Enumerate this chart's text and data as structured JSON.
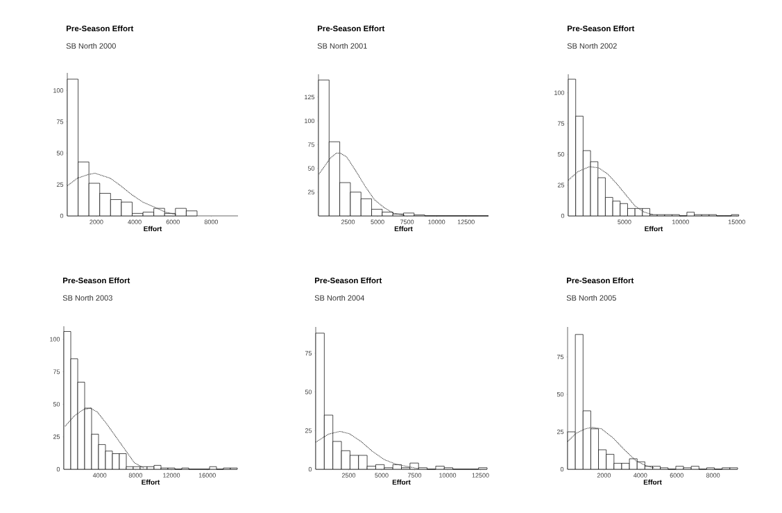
{
  "chart_data": [
    {
      "type": "histogram",
      "title": "Pre-Season Effort",
      "subtitle": "SB North 2000",
      "xlabel": "Effort",
      "xlim": [
        480,
        9400
      ],
      "ylim": [
        0,
        114
      ],
      "xticks": [
        2000,
        4000,
        6000,
        8000
      ],
      "yticks": [
        0,
        25,
        50,
        75,
        100
      ],
      "series": [
        {
          "type": "histogram",
          "color": "#ffffff",
          "bins": [
            480,
            1045,
            1610,
            2175,
            2740,
            3305,
            3870,
            4435,
            5000,
            5565,
            6130,
            6695,
            7260
          ],
          "values": [
            109,
            43,
            26,
            18,
            13,
            11,
            2,
            3,
            6,
            2,
            6,
            4
          ]
        },
        {
          "type": "line",
          "color": "#333333",
          "line_style": "dotted",
          "x": [
            484,
            1000,
            1576,
            1925,
            2728,
            3273,
            3842,
            4424,
            5030,
            5600,
            6180
          ],
          "values": [
            24,
            30,
            33,
            34,
            30,
            24,
            17,
            11,
            7,
            3,
            1
          ]
        }
      ]
    },
    {
      "type": "histogram",
      "title": "Pre-Season Effort",
      "subtitle": "SB North 2001",
      "xlabel": "Effort",
      "xlim": [
        0,
        14400
      ],
      "ylim": [
        0,
        149
      ],
      "xticks": [
        2500,
        5000,
        7500,
        10000,
        12500
      ],
      "yticks": [
        25,
        50,
        75,
        100,
        125
      ],
      "series": [
        {
          "type": "histogram",
          "color": "#ffffff",
          "bins": [
            0,
            900,
            1800,
            2700,
            3600,
            4500,
            5400,
            6300,
            7200,
            8100,
            9000,
            9900,
            10800,
            11700,
            12600,
            13500,
            14400
          ],
          "values": [
            143,
            78,
            35,
            25,
            18,
            7,
            4,
            2,
            3,
            1,
            0,
            0,
            0,
            0,
            0,
            0
          ]
        },
        {
          "type": "line",
          "color": "#333333",
          "line_style": "dotted",
          "x": [
            40,
            1020,
            1510,
            1840,
            2390,
            3175,
            3960,
            4740,
            5530,
            6310,
            7290
          ],
          "values": [
            44,
            61,
            66,
            66,
            62,
            47,
            31,
            17,
            9,
            3,
            0.5
          ]
        }
      ]
    },
    {
      "type": "histogram",
      "title": "Pre-Season Effort",
      "subtitle": "SB North 2002",
      "xlabel": "Effort",
      "xlim": [
        0,
        15200
      ],
      "ylim": [
        0,
        115
      ],
      "xticks": [
        5000,
        10000,
        15000
      ],
      "yticks": [
        0,
        25,
        50,
        75,
        100
      ],
      "series": [
        {
          "type": "histogram",
          "color": "#ffffff",
          "bins": [
            0,
            660,
            1320,
            1980,
            2640,
            3300,
            3960,
            4620,
            5280,
            5940,
            6600,
            7260,
            7920,
            8580,
            9240,
            9900,
            10560,
            11220,
            11880,
            12540,
            13200,
            13860,
            14520,
            15180
          ],
          "values": [
            111,
            81,
            53,
            44,
            31,
            15,
            12,
            10,
            6,
            6,
            6,
            1,
            1,
            1,
            1,
            0,
            3,
            1,
            1,
            1,
            0,
            0,
            1
          ]
        },
        {
          "type": "line",
          "color": "#333333",
          "line_style": "dotted",
          "x": [
            0,
            873,
            1888,
            2700,
            3512,
            4323,
            5135,
            5947,
            6760,
            7572
          ],
          "values": [
            29,
            36,
            40,
            39,
            34,
            26,
            17,
            8,
            3,
            1
          ]
        }
      ]
    },
    {
      "type": "histogram",
      "title": "Pre-Season Effort",
      "subtitle": "SB North 2003",
      "xlabel": "Effort",
      "xlim": [
        0,
        19350
      ],
      "ylim": [
        0,
        110
      ],
      "xticks": [
        4000,
        8000,
        12000,
        16000
      ],
      "yticks": [
        0,
        25,
        50,
        75,
        100
      ],
      "series": [
        {
          "type": "histogram",
          "color": "#ffffff",
          "bins": [
            0,
            774,
            1548,
            2322,
            3096,
            3870,
            4644,
            5418,
            6192,
            6966,
            7740,
            8514,
            9288,
            10062,
            10836,
            11610,
            12384,
            13158,
            13932,
            14706,
            15480,
            16254,
            17028,
            17802,
            18576,
            19350
          ],
          "values": [
            106,
            85,
            67,
            47,
            27,
            19,
            14,
            12,
            12,
            2,
            2,
            2,
            2,
            3,
            1,
            1,
            0,
            1,
            0,
            0,
            0,
            2,
            0,
            1,
            1
          ]
        },
        {
          "type": "line",
          "color": "#333333",
          "line_style": "dotted",
          "x": [
            129,
            1161,
            2193,
            2967,
            3741,
            4773,
            5805,
            6837,
            7869,
            8901
          ],
          "values": [
            33,
            41,
            46,
            47,
            44,
            35,
            25,
            15,
            5,
            1
          ]
        }
      ]
    },
    {
      "type": "histogram",
      "title": "Pre-Season Effort",
      "subtitle": "SB North 2004",
      "xlabel": "Effort",
      "xlim": [
        0,
        13000
      ],
      "ylim": [
        0,
        92
      ],
      "xticks": [
        2500,
        5000,
        7500,
        10000,
        12500
      ],
      "yticks": [
        0,
        25,
        50,
        75
      ],
      "series": [
        {
          "type": "histogram",
          "color": "#ffffff",
          "bins": [
            0,
            650,
            1300,
            1950,
            2600,
            3250,
            3900,
            4550,
            5200,
            5850,
            6500,
            7150,
            7800,
            8450,
            9100,
            9750,
            10400,
            11050,
            11700,
            12350,
            13000
          ],
          "values": [
            88,
            35,
            18,
            12,
            9,
            9,
            2,
            3,
            1,
            3,
            1,
            4,
            1,
            0,
            2,
            1,
            0,
            0,
            0,
            1
          ]
        },
        {
          "type": "line",
          "color": "#333333",
          "line_style": "dotted",
          "x": [
            0,
            968,
            1848,
            2552,
            3432,
            4312,
            5192,
            6072,
            6952,
            7832
          ],
          "values": [
            17.5,
            22.7,
            24.5,
            23,
            18,
            11.5,
            6.3,
            3.3,
            1.8,
            0.3
          ]
        }
      ]
    },
    {
      "type": "histogram",
      "title": "Pre-Season Effort",
      "subtitle": "SB North 2005",
      "xlabel": "Effort",
      "xlim": [
        0,
        9350
      ],
      "ylim": [
        0,
        95
      ],
      "xticks": [
        2000,
        4000,
        6000,
        8000
      ],
      "yticks": [
        0,
        25,
        50,
        75
      ],
      "series": [
        {
          "type": "histogram",
          "color": "#ffffff",
          "bins": [
            0,
            425,
            850,
            1275,
            1700,
            2125,
            2550,
            2975,
            3400,
            3825,
            4250,
            4675,
            5100,
            5525,
            5950,
            6375,
            6800,
            7225,
            7650,
            8075,
            8500,
            8925,
            9350
          ],
          "values": [
            25,
            90,
            39,
            27,
            13,
            10,
            4,
            4,
            7,
            5,
            2,
            2,
            1,
            0,
            2,
            1,
            2,
            0,
            1,
            0,
            1,
            1
          ]
        },
        {
          "type": "line",
          "color": "#333333",
          "line_style": "dotted",
          "x": [
            0,
            468,
            975,
            1355,
            1861,
            2494,
            3127,
            3760,
            4266,
            4773
          ],
          "values": [
            18.5,
            24,
            27,
            28,
            27,
            21,
            13,
            5.7,
            2.6,
            0.8
          ]
        }
      ]
    }
  ]
}
